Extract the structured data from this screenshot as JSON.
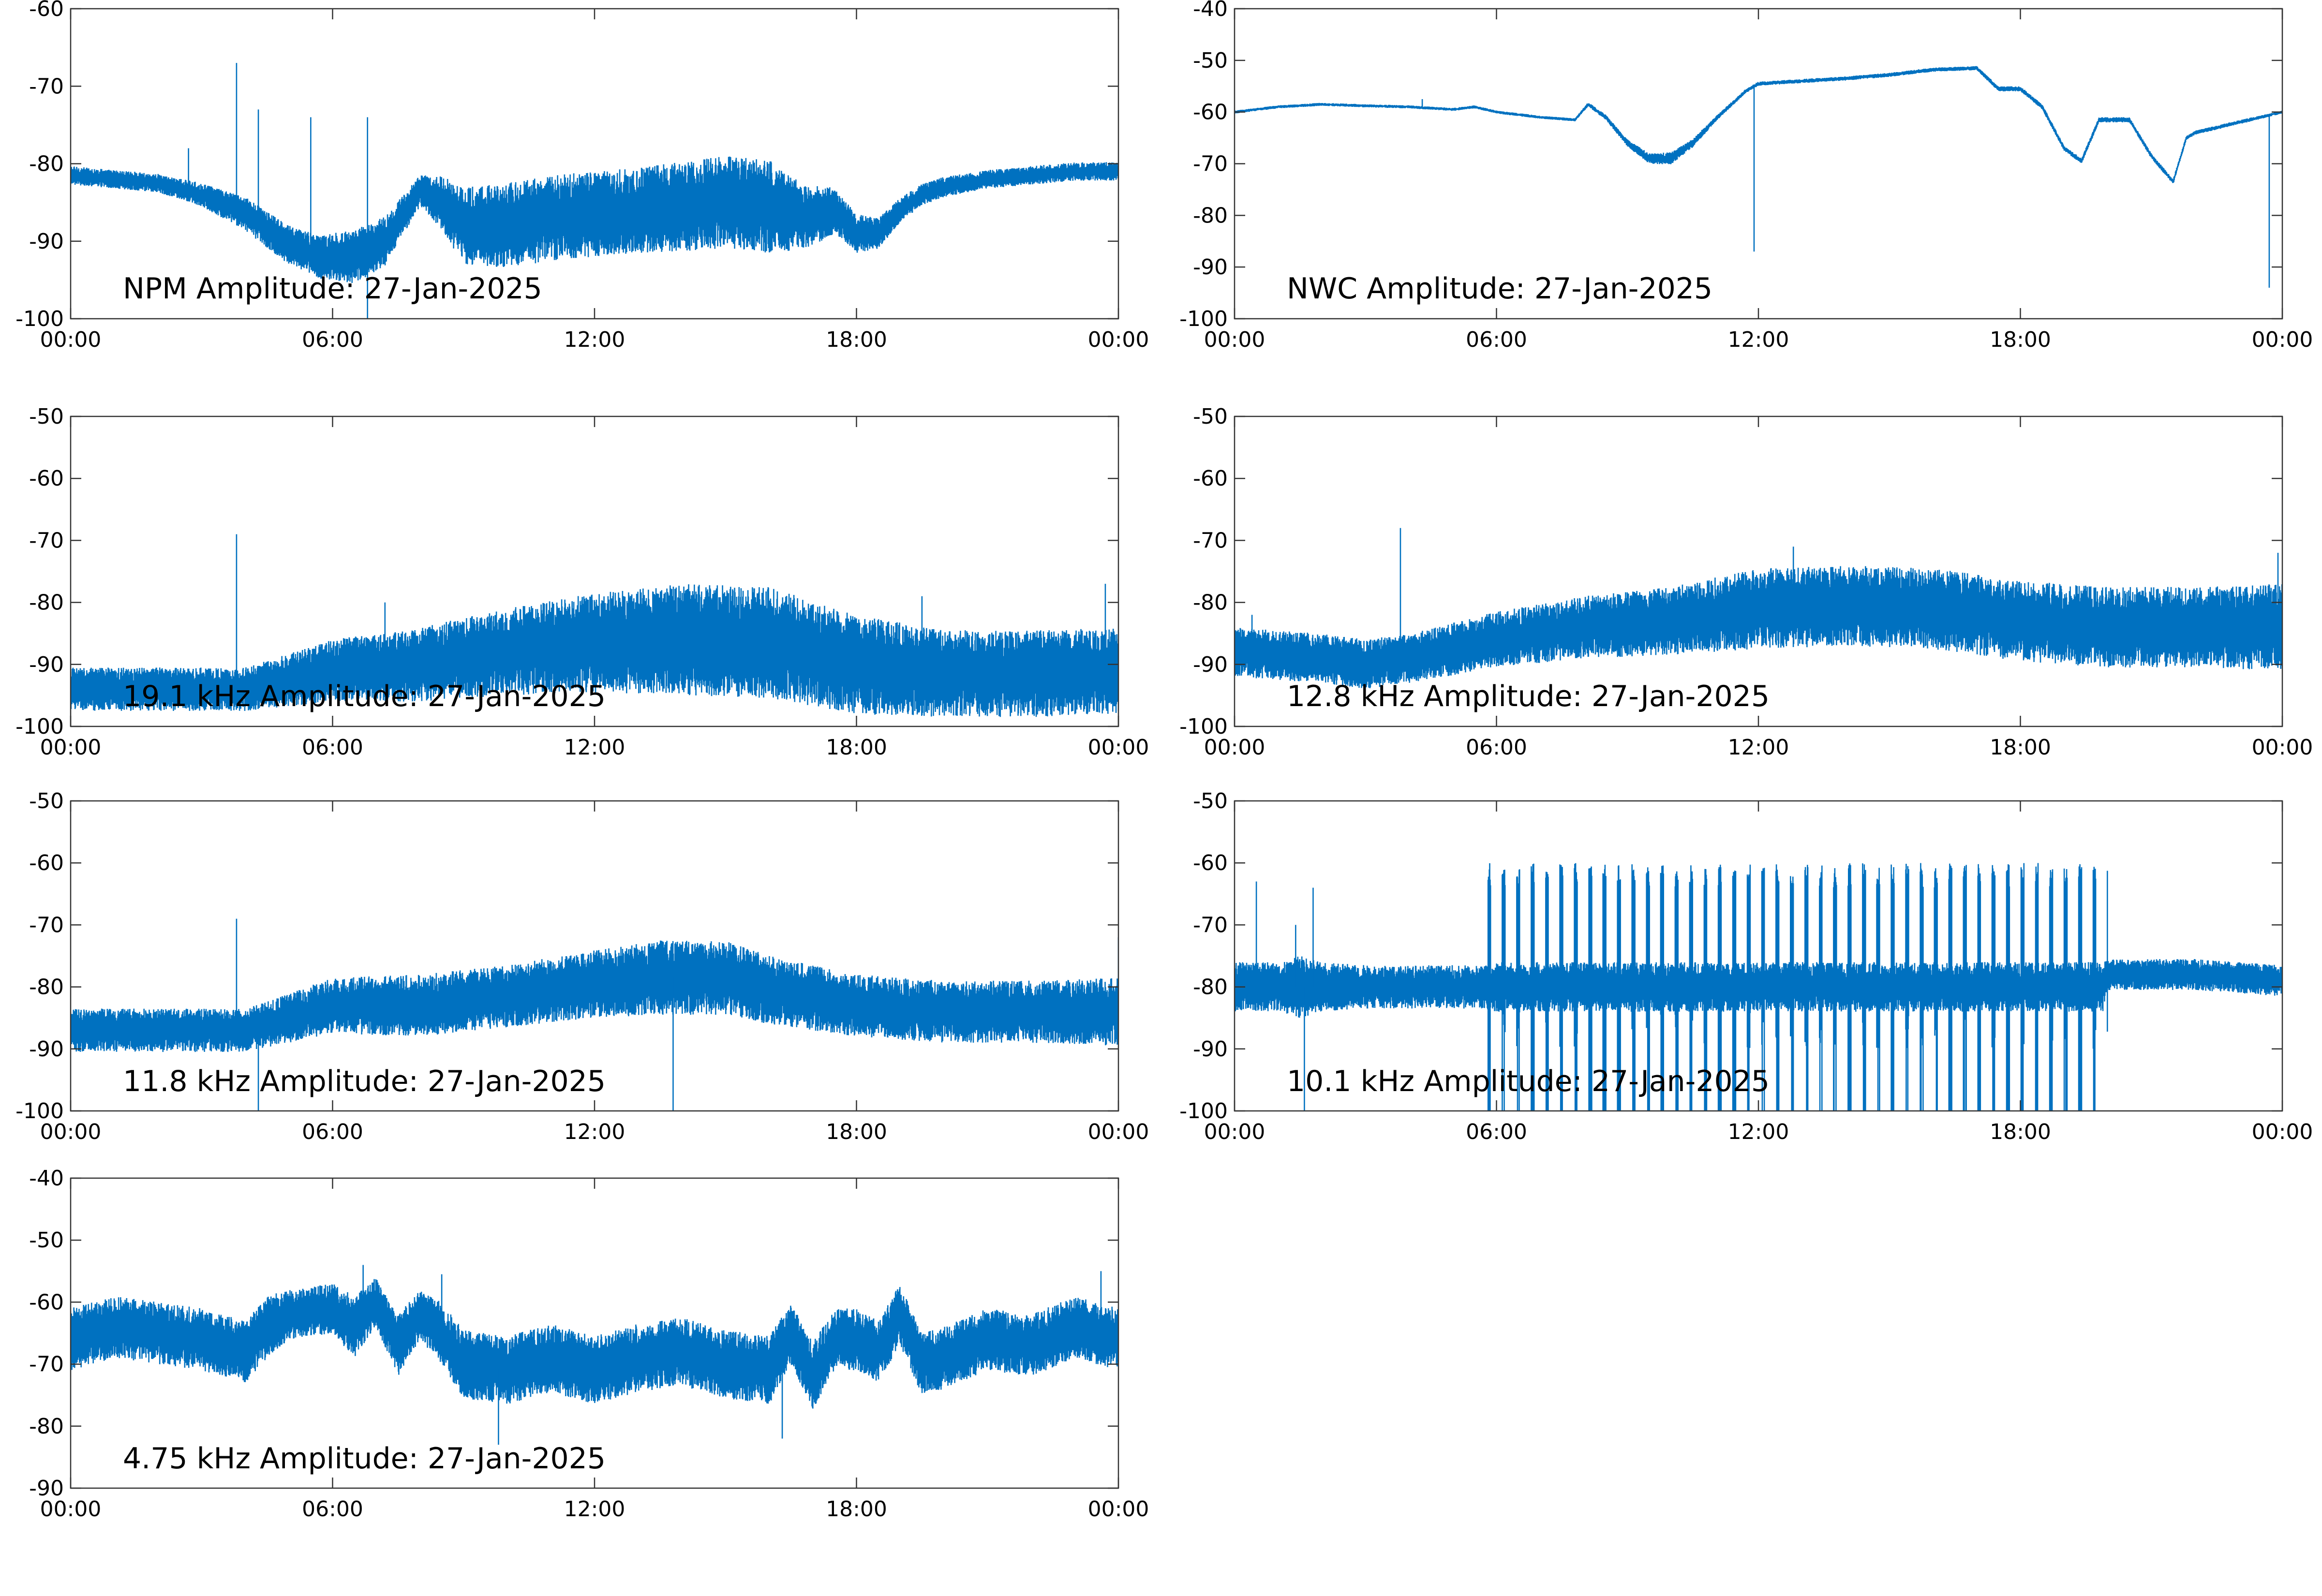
{
  "colors": {
    "signal": "#0071c0",
    "axes": "#333333",
    "background": "#ffffff"
  },
  "chart_data": [
    {
      "id": "npm",
      "type": "line",
      "title": "NPM Amplitude: 27-Jan-2025",
      "xlabel": "",
      "ylabel": "",
      "grid": false,
      "xticks": [
        "00:00",
        "06:00",
        "12:00",
        "18:00",
        "00:00"
      ],
      "xlim": [
        0,
        24
      ],
      "yticks": [
        -100,
        -90,
        -80,
        -70,
        -60
      ],
      "ylim": [
        -100,
        -60
      ],
      "series": [
        {
          "x": [
            0,
            1,
            2,
            3,
            4,
            5,
            5.7,
            6.5,
            7.2,
            8,
            8.5,
            9,
            10,
            11,
            12,
            13,
            14,
            15,
            16,
            16.8,
            17.5,
            18,
            18.5,
            19,
            19.5,
            20,
            21,
            22,
            23,
            24
          ],
          "center": [
            -81.5,
            -82,
            -82.5,
            -84,
            -86.5,
            -90.5,
            -92,
            -92,
            -90,
            -83.5,
            -85,
            -88,
            -88,
            -87,
            -86.5,
            -86,
            -85.5,
            -85,
            -85.5,
            -87,
            -86,
            -89,
            -89,
            -86,
            -84,
            -83,
            -82,
            -81.5,
            -81,
            -81
          ],
          "spread": [
            1.2,
            1.2,
            1.2,
            1.5,
            2.2,
            2.5,
            2.8,
            3.5,
            3.2,
            2,
            3.5,
            5,
            5.5,
            5.5,
            5.5,
            5.5,
            5.8,
            6,
            6,
            4.2,
            3,
            2.5,
            2,
            1.6,
            1.4,
            1.3,
            1.2,
            1.2,
            1.2,
            1.2
          ],
          "spikes": [
            {
              "x": 3.8,
              "y": -67
            },
            {
              "x": 4.3,
              "y": -73
            },
            {
              "x": 5.5,
              "y": -74
            },
            {
              "x": 6.8,
              "y": -74
            },
            {
              "x": 6.8,
              "y": -100
            },
            {
              "x": 2.7,
              "y": -78
            }
          ]
        }
      ]
    },
    {
      "id": "nwc",
      "type": "line",
      "title": "NWC Amplitude: 27-Jan-2025",
      "xlabel": "",
      "ylabel": "",
      "grid": false,
      "xticks": [
        "00:00",
        "06:00",
        "12:00",
        "18:00",
        "00:00"
      ],
      "xlim": [
        0,
        24
      ],
      "yticks": [
        -100,
        -90,
        -80,
        -70,
        -60,
        -50,
        -40
      ],
      "ylim": [
        -100,
        -40
      ],
      "series": [
        {
          "x": [
            0,
            1,
            2,
            3,
            4,
            5,
            5.5,
            6,
            7,
            7.8,
            8.1,
            8.5,
            9,
            9.5,
            10,
            10.5,
            11,
            11.7,
            12,
            13,
            14,
            15,
            16,
            17,
            17.5,
            18,
            18.5,
            19,
            19.4,
            19.8,
            20.5,
            21,
            21.5,
            21.8,
            22,
            22.5,
            23,
            24
          ],
          "center": [
            -60,
            -59,
            -58.5,
            -58.8,
            -59,
            -59.5,
            -59,
            -60,
            -61,
            -61.5,
            -58.5,
            -61,
            -66,
            -69,
            -69,
            -66,
            -61.5,
            -56,
            -54.5,
            -54,
            -53.5,
            -52.8,
            -51.8,
            -51.5,
            -55.5,
            -55.5,
            -59,
            -67,
            -69.5,
            -61.5,
            -61.5,
            -68.5,
            -73.5,
            -65,
            -64,
            -63,
            -62,
            -60
          ],
          "spread": [
            0.3,
            0.3,
            0.3,
            0.3,
            0.3,
            0.3,
            0.3,
            0.3,
            0.3,
            0.3,
            0.4,
            0.5,
            0.7,
            1,
            1.2,
            0.8,
            0.5,
            0.4,
            0.4,
            0.4,
            0.4,
            0.4,
            0.4,
            0.4,
            0.5,
            0.5,
            0.5,
            0.5,
            0.5,
            0.5,
            0.5,
            0.5,
            0.5,
            0.4,
            0.4,
            0.4,
            0.4,
            0.3
          ],
          "spikes": [
            {
              "x": 11.9,
              "y": -87
            },
            {
              "x": 23.7,
              "y": -94
            },
            {
              "x": 4.3,
              "y": -57.5
            }
          ]
        }
      ]
    },
    {
      "id": "khz191",
      "type": "line",
      "title": "19.1 kHz Amplitude: 27-Jan-2025",
      "xlabel": "",
      "ylabel": "",
      "grid": false,
      "xticks": [
        "00:00",
        "06:00",
        "12:00",
        "18:00",
        "00:00"
      ],
      "xlim": [
        0,
        24
      ],
      "yticks": [
        -100,
        -90,
        -80,
        -70,
        -60,
        -50
      ],
      "ylim": [
        -100,
        -50
      ],
      "series": [
        {
          "x": [
            0,
            2,
            4,
            6,
            8,
            10,
            12,
            14,
            16,
            18,
            20,
            22,
            24
          ],
          "center": [
            -94,
            -94,
            -94,
            -91,
            -90,
            -88,
            -86.5,
            -86,
            -86.5,
            -90,
            -91.5,
            -91.5,
            -91
          ],
          "spread": [
            3.5,
            3.5,
            3.5,
            5,
            6,
            7,
            8,
            9,
            9,
            8,
            7,
            7,
            7
          ],
          "spikes": [
            {
              "x": 3.8,
              "y": -69
            },
            {
              "x": 7.2,
              "y": -80
            },
            {
              "x": 19.5,
              "y": -79
            },
            {
              "x": 23.7,
              "y": -77
            }
          ]
        }
      ]
    },
    {
      "id": "khz128",
      "type": "line",
      "title": "12.8 kHz Amplitude: 27-Jan-2025",
      "xlabel": "",
      "ylabel": "",
      "grid": false,
      "xticks": [
        "00:00",
        "06:00",
        "12:00",
        "18:00",
        "00:00"
      ],
      "xlim": [
        0,
        24
      ],
      "yticks": [
        -100,
        -90,
        -80,
        -70,
        -60,
        -50
      ],
      "ylim": [
        -100,
        -50
      ],
      "series": [
        {
          "x": [
            0,
            2,
            3,
            4,
            6,
            8,
            10,
            12,
            14,
            16,
            18,
            20,
            22,
            24
          ],
          "center": [
            -88,
            -89,
            -90,
            -89,
            -86,
            -84,
            -83,
            -81,
            -80.5,
            -81,
            -83,
            -84,
            -84,
            -84
          ],
          "spread": [
            4,
            4,
            4,
            4,
            4.5,
            5,
            5.5,
            6.5,
            6.5,
            6.5,
            6.5,
            6.5,
            6.5,
            7
          ],
          "spikes": [
            {
              "x": 3.8,
              "y": -68
            },
            {
              "x": 12.8,
              "y": -71
            },
            {
              "x": 23.9,
              "y": -72
            },
            {
              "x": 0.4,
              "y": -82
            }
          ]
        }
      ]
    },
    {
      "id": "khz118",
      "type": "line",
      "title": "11.8 kHz Amplitude: 27-Jan-2025",
      "xlabel": "",
      "ylabel": "",
      "grid": false,
      "xticks": [
        "00:00",
        "06:00",
        "12:00",
        "18:00",
        "00:00"
      ],
      "xlim": [
        0,
        24
      ],
      "yticks": [
        -100,
        -90,
        -80,
        -70,
        -60,
        -50
      ],
      "ylim": [
        -100,
        -50
      ],
      "series": [
        {
          "x": [
            0,
            2,
            4,
            5,
            6,
            8,
            10,
            12,
            13.5,
            15,
            16,
            18,
            20,
            22,
            24
          ],
          "center": [
            -87,
            -87,
            -87,
            -85,
            -83,
            -83,
            -81.5,
            -79.5,
            -78.5,
            -78.5,
            -80.5,
            -83,
            -84,
            -84,
            -84
          ],
          "spread": [
            3.5,
            3.5,
            3.5,
            4,
            4.5,
            5,
            5,
            5.5,
            6,
            6,
            5.5,
            5,
            5,
            5,
            5.5
          ],
          "spikes": [
            {
              "x": 3.8,
              "y": -69
            },
            {
              "x": 13.8,
              "y": -100
            },
            {
              "x": 4.3,
              "y": -100
            },
            {
              "x": 24,
              "y": -72
            }
          ]
        }
      ]
    },
    {
      "id": "khz101",
      "type": "line",
      "title": "10.1 kHz Amplitude: 27-Jan-2025",
      "xlabel": "",
      "ylabel": "",
      "grid": false,
      "xticks": [
        "00:00",
        "06:00",
        "12:00",
        "18:00",
        "00:00"
      ],
      "xlim": [
        0,
        24
      ],
      "yticks": [
        -100,
        -90,
        -80,
        -70,
        -60,
        -50
      ],
      "ylim": [
        -100,
        -50
      ],
      "series": [
        {
          "x": [
            0,
            1,
            1.5,
            2,
            3,
            4,
            5,
            5.7,
            6,
            10,
            14,
            18,
            19.9,
            20,
            21,
            22,
            23,
            24
          ],
          "center": [
            -80,
            -80,
            -80,
            -80,
            -80,
            -80,
            -80,
            -80,
            -80,
            -80,
            -80,
            -80,
            -80,
            -78,
            -78,
            -78,
            -78.5,
            -79
          ],
          "spread": [
            4,
            4,
            5,
            4,
            3.5,
            3.5,
            3.5,
            3.5,
            4,
            4,
            4,
            4,
            4,
            2.5,
            2.5,
            2.5,
            2.5,
            2.5
          ],
          "bursts": {
            "start": 5.8,
            "end": 20.0,
            "period": 0.33,
            "top": -64,
            "bottom": -100
          },
          "spikes": [
            {
              "x": 0.5,
              "y": -63
            },
            {
              "x": 1.6,
              "y": -100
            },
            {
              "x": 1.8,
              "y": -64
            },
            {
              "x": 1.4,
              "y": -70
            }
          ]
        }
      ]
    },
    {
      "id": "khz475",
      "type": "line",
      "title": "4.75 kHz Amplitude: 27-Jan-2025",
      "xlabel": "",
      "ylabel": "",
      "grid": false,
      "xticks": [
        "00:00",
        "06:00",
        "12:00",
        "18:00",
        "00:00"
      ],
      "xlim": [
        0,
        24
      ],
      "yticks": [
        -90,
        -80,
        -70,
        -60,
        -50,
        -40
      ],
      "ylim": [
        -90,
        -40
      ],
      "series": [
        {
          "x": [
            0,
            1,
            2,
            3,
            4,
            4.5,
            5,
            6,
            6.5,
            7,
            7.5,
            8,
            8.5,
            9,
            10,
            11,
            12,
            13,
            14,
            15,
            16,
            16.5,
            17,
            17.5,
            18,
            18.5,
            19,
            19.5,
            20,
            21,
            22,
            23,
            24
          ],
          "center": [
            -66,
            -64,
            -65,
            -66,
            -68,
            -64,
            -62,
            -61,
            -64,
            -60,
            -67,
            -62,
            -65,
            -70,
            -71,
            -69,
            -71,
            -69,
            -68,
            -70,
            -71,
            -65,
            -72,
            -66,
            -66,
            -68,
            -62,
            -70,
            -69,
            -66,
            -67,
            -64,
            -66
          ],
          "spread": [
            5,
            5,
            5,
            5,
            5,
            5,
            4,
            4,
            5,
            4,
            5,
            4,
            5,
            5.5,
            5.5,
            5.5,
            5.5,
            5.5,
            5.5,
            5.5,
            5.5,
            5,
            5.5,
            5,
            5,
            5,
            5,
            5,
            5,
            5,
            5,
            5,
            5
          ],
          "spikes": [
            {
              "x": 9.8,
              "y": -83
            },
            {
              "x": 16.3,
              "y": -82
            },
            {
              "x": 6.7,
              "y": -54
            },
            {
              "x": 23.6,
              "y": -55
            },
            {
              "x": 8.5,
              "y": -55.5
            }
          ]
        }
      ]
    }
  ]
}
